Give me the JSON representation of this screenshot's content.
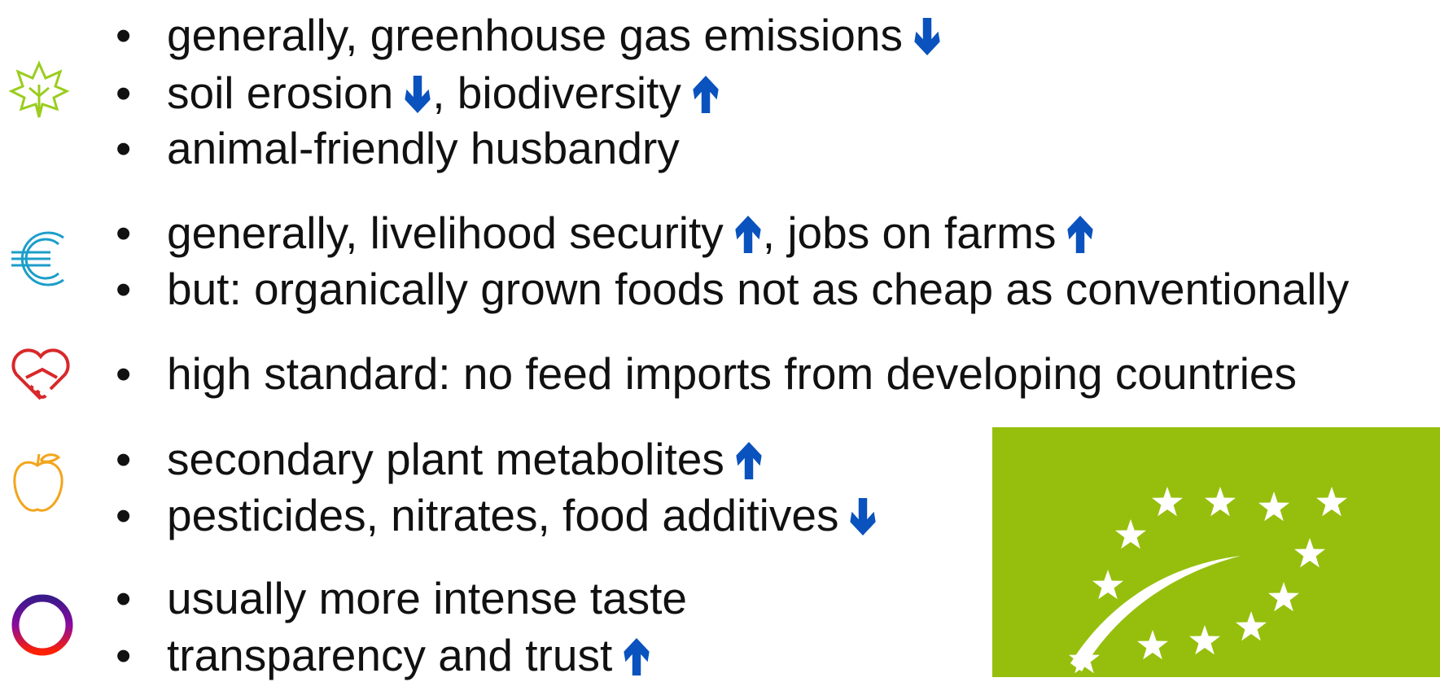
{
  "sections": [
    {
      "items": [
        [
          "generally, greenhouse gas emissions"
        ],
        [
          "soil erosion",
          ", biodiversity"
        ],
        [
          "animal-friendly husbandry"
        ]
      ]
    },
    {
      "items": [
        [
          "generally, livelihood security",
          ", jobs on farms"
        ],
        [
          "but: organically grown foods not as cheap as conventionally"
        ]
      ]
    },
    {
      "items": [
        [
          "high standard: no feed imports from developing countries"
        ]
      ]
    },
    {
      "items": [
        [
          "secondary plant metabolites"
        ],
        [
          "pesticides, nitrates, food additives"
        ]
      ]
    },
    {
      "items": [
        [
          "usually more intense taste"
        ],
        [
          "transparency and trust"
        ]
      ]
    }
  ]
}
